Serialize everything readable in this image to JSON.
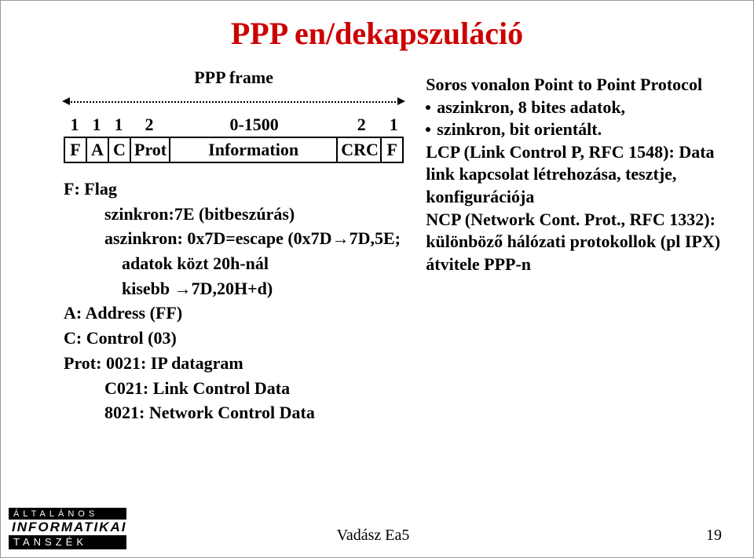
{
  "title": "PPP en/dekapszuláció",
  "title_color": "#cc0000",
  "frame": {
    "label": "PPP frame",
    "columns": [
      {
        "size": "1",
        "label": "F",
        "width": "col-f1"
      },
      {
        "size": "1",
        "label": "A",
        "width": "col-a"
      },
      {
        "size": "1",
        "label": "C",
        "width": "col-c"
      },
      {
        "size": "2",
        "label": "Prot",
        "width": "col-prot"
      },
      {
        "size": "0-1500",
        "label": "Information",
        "width": "col-info"
      },
      {
        "size": "2",
        "label": "CRC",
        "width": "col-crc"
      },
      {
        "size": "1",
        "label": "F",
        "width": "col-f2"
      }
    ]
  },
  "definitions": [
    {
      "indent": 0,
      "text": "F: Flag"
    },
    {
      "indent": 1,
      "text": "szinkron:7E (bitbeszúrás)"
    },
    {
      "indent": 1,
      "text": "aszinkron: 0x7D=escape (0x7D→7D,5E;"
    },
    {
      "indent": 2,
      "text": "adatok közt 20h-nál"
    },
    {
      "indent": 2,
      "text": "kisebb →7D,20H+d)"
    },
    {
      "indent": 0,
      "text": "A: Address (FF)"
    },
    {
      "indent": 0,
      "text": "C: Control (03)"
    },
    {
      "indent": 0,
      "text": "Prot: 0021: IP datagram"
    },
    {
      "indent": 1,
      "text": "C021: Link Control Data"
    },
    {
      "indent": 1,
      "text": "8021: Network Control Data"
    }
  ],
  "right": {
    "intro": "Soros  vonalon Point to Point Protocol",
    "bullets": [
      "aszinkron, 8 bites adatok,",
      "szinkron, bit orientált."
    ],
    "body": "LCP (Link Control P, RFC 1548): Data link kapcsolat létrehozása, tesztje, konfigurációja",
    "body2": "NCP (Network Cont. Prot., RFC 1332): különböző hálózati protokollok (pl IPX) átvitele PPP-n"
  },
  "footer": {
    "logo_top": "ÁLTALÁNOS",
    "logo_middle": "INFORMATIKAI",
    "logo_bottom": "TANSZÉK",
    "center": "Vadász Ea5",
    "page": "19"
  }
}
